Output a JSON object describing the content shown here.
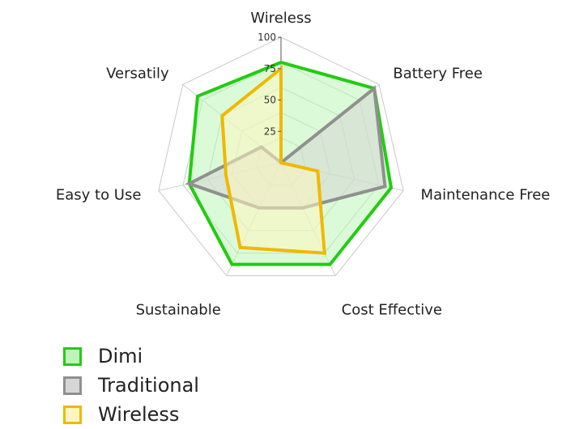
{
  "chart_data": {
    "type": "radar",
    "axes": [
      "Wireless",
      "Battery Free",
      "Maintenance Free",
      "Cost Effective",
      "Sustainable",
      "Easy to Use",
      "Versatily"
    ],
    "ticks": [
      "25",
      "50",
      "75",
      "100"
    ],
    "rmax": 100,
    "series": [
      {
        "name": "Dimi",
        "values": [
          80,
          95,
          90,
          90,
          90,
          75,
          85
        ],
        "stroke": "#22cc11",
        "fill": "#bdf5b8"
      },
      {
        "name": "Traditional",
        "values": [
          0,
          95,
          85,
          40,
          40,
          75,
          20
        ],
        "stroke": "#909090",
        "fill": "#d6d6d6"
      },
      {
        "name": "Wireless",
        "values": [
          75,
          0,
          30,
          80,
          75,
          45,
          60
        ],
        "stroke": "#f0b800",
        "fill": "#fff5c0"
      }
    ]
  }
}
